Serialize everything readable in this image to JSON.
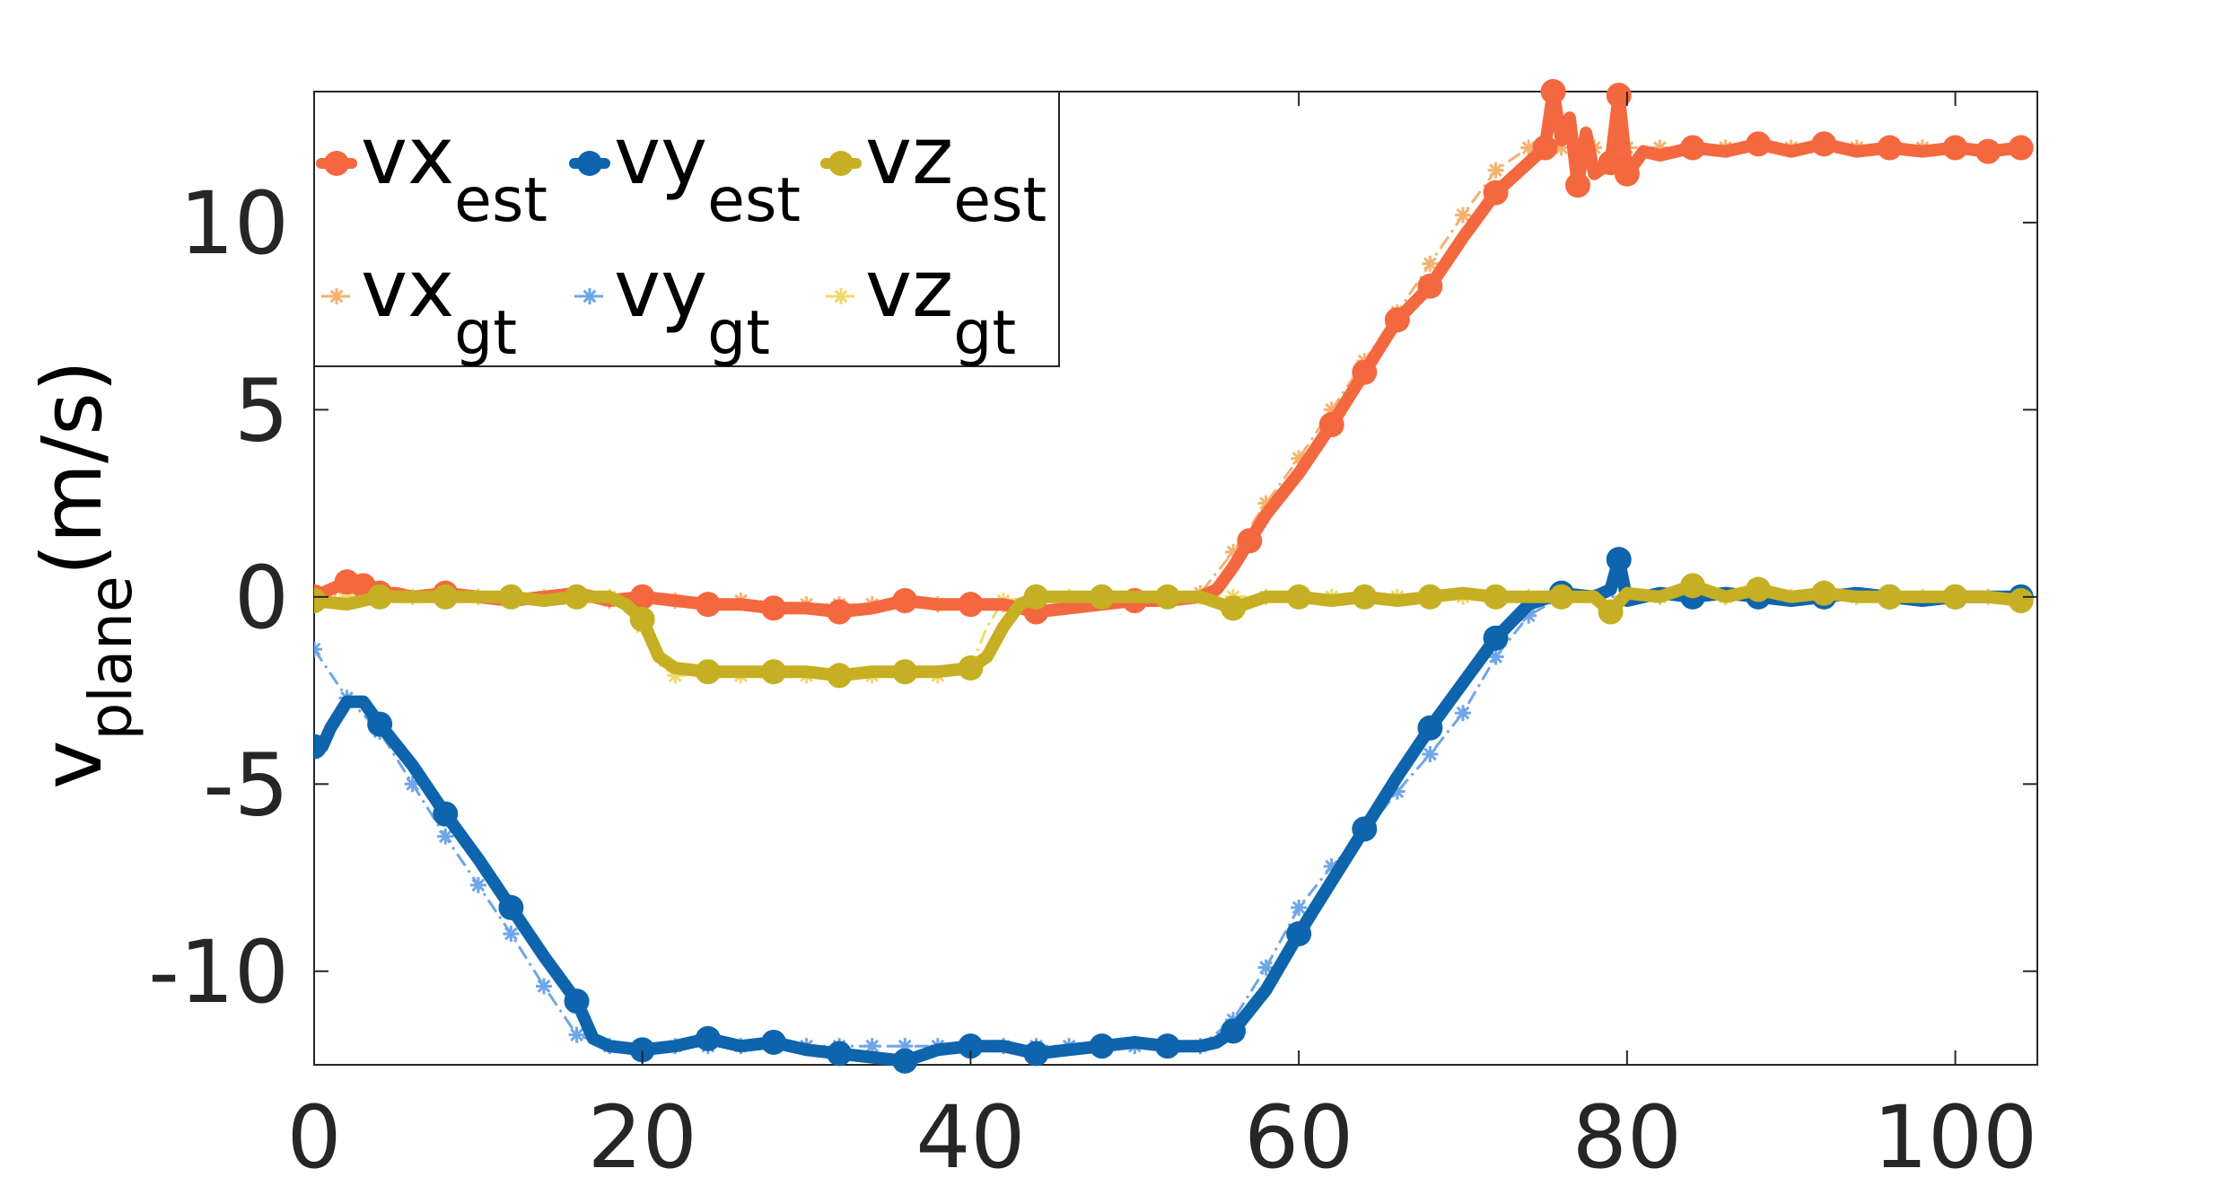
{
  "chart_data": {
    "type": "line",
    "title": "",
    "xlabel": "",
    "ylabel": {
      "base": "v",
      "subscript": "plane",
      "suffix": "(m/s)"
    },
    "xlim": [
      0,
      105
    ],
    "ylim": [
      -12.5,
      13.5
    ],
    "xticks": [
      0,
      20,
      40,
      60,
      80,
      100
    ],
    "yticks": [
      -10,
      -5,
      0,
      5,
      10
    ],
    "xtick_labels": [
      "0",
      "20",
      "40",
      "60",
      "80",
      "100"
    ],
    "ytick_labels": [
      "-10",
      "-5",
      "0",
      "5",
      "10"
    ],
    "grid": false,
    "legend_position": "top-left",
    "series": [
      {
        "name": "vx_est",
        "label_main": "vx",
        "label_sub": "est",
        "kind": "est",
        "color": "#F4683F",
        "x": [
          0,
          1,
          2,
          3,
          4,
          5,
          6,
          8,
          10,
          12,
          14,
          16,
          18,
          20,
          22,
          24,
          26,
          28,
          30,
          32,
          34,
          36,
          38,
          40,
          42,
          44,
          46,
          48,
          50,
          52,
          54,
          55,
          56,
          57,
          58,
          60,
          62,
          64,
          66,
          68,
          70,
          72,
          74,
          75,
          75.5,
          76,
          76.5,
          77,
          77.5,
          78,
          79,
          79.5,
          80,
          81,
          82,
          84,
          86,
          88,
          90,
          92,
          94,
          96,
          98,
          100,
          102,
          104
        ],
        "y": [
          0,
          0.2,
          0.4,
          0.3,
          0.1,
          0.1,
          0,
          0.1,
          0,
          -0.1,
          0,
          0.1,
          -0.1,
          0,
          -0.1,
          -0.2,
          -0.2,
          -0.3,
          -0.3,
          -0.4,
          -0.3,
          -0.1,
          -0.2,
          -0.2,
          -0.2,
          -0.4,
          -0.3,
          -0.2,
          -0.1,
          -0.1,
          0,
          0.2,
          0.8,
          1.5,
          2.2,
          3.3,
          4.6,
          6.0,
          7.4,
          8.3,
          9.6,
          10.8,
          11.6,
          12.0,
          13.5,
          12.2,
          12.8,
          11.0,
          12.4,
          11.3,
          11.6,
          13.4,
          11.3,
          11.9,
          11.8,
          12.0,
          11.9,
          12.1,
          11.9,
          12.1,
          11.9,
          12.0,
          11.9,
          12.0,
          11.9,
          12.0
        ],
        "markers": [
          0,
          2,
          3,
          4,
          8,
          20,
          24,
          28,
          32,
          36,
          40,
          44,
          50,
          57,
          62,
          64,
          66,
          68,
          72,
          75,
          75.5,
          77,
          79,
          79.5,
          80,
          84,
          88,
          92,
          96,
          100,
          102,
          104
        ]
      },
      {
        "name": "vy_est",
        "label_main": "vy",
        "label_sub": "est",
        "kind": "est",
        "color": "#0E64AD",
        "x": [
          0,
          0.5,
          1,
          2,
          3,
          4,
          6,
          8,
          10,
          12,
          14,
          16,
          17,
          18,
          20,
          22,
          24,
          26,
          28,
          30,
          32,
          34,
          36,
          38,
          40,
          42,
          44,
          46,
          48,
          50,
          52,
          54,
          55,
          56,
          58,
          60,
          62,
          64,
          66,
          68,
          70,
          72,
          74,
          76,
          78,
          79,
          79.5,
          80,
          82,
          84,
          86,
          88,
          90,
          92,
          94,
          96,
          98,
          100,
          102,
          104
        ],
        "y": [
          -4.0,
          -4.0,
          -3.5,
          -2.8,
          -2.8,
          -3.4,
          -4.5,
          -5.8,
          -7.0,
          -8.3,
          -9.6,
          -10.8,
          -11.8,
          -12.0,
          -12.1,
          -12.0,
          -11.8,
          -12.0,
          -11.9,
          -12.1,
          -12.2,
          -12.3,
          -12.4,
          -12.1,
          -12.0,
          -12.0,
          -12.2,
          -12.1,
          -12.0,
          -11.9,
          -12.0,
          -12.0,
          -11.9,
          -11.6,
          -10.5,
          -9.0,
          -7.6,
          -6.2,
          -4.8,
          -3.5,
          -2.3,
          -1.1,
          -0.2,
          0.1,
          0,
          0.2,
          1.0,
          -0.1,
          0.1,
          0,
          0.1,
          0,
          -0.1,
          0,
          0.1,
          0,
          -0.1,
          0,
          0,
          0
        ],
        "markers": [
          0,
          4,
          8,
          12,
          16,
          20,
          24,
          28,
          32,
          36,
          40,
          44,
          48,
          52,
          56,
          60,
          64,
          68,
          72,
          76,
          79.5,
          84,
          88,
          92,
          96,
          100,
          104
        ]
      },
      {
        "name": "vz_est",
        "label_main": "vz",
        "label_sub": "est",
        "kind": "est",
        "color": "#C6AF23",
        "x": [
          0,
          2,
          4,
          6,
          8,
          10,
          12,
          14,
          16,
          18,
          19,
          20,
          21,
          22,
          24,
          26,
          28,
          30,
          32,
          34,
          36,
          38,
          40,
          41,
          42,
          43,
          44,
          46,
          48,
          50,
          52,
          54,
          56,
          58,
          60,
          62,
          64,
          66,
          68,
          70,
          72,
          74,
          76,
          78,
          79,
          80,
          82,
          84,
          86,
          88,
          90,
          92,
          94,
          96,
          98,
          100,
          102,
          104
        ],
        "y": [
          -0.1,
          -0.2,
          0,
          0,
          0,
          0,
          0,
          -0.1,
          0,
          0,
          -0.2,
          -0.6,
          -1.6,
          -1.9,
          -2.0,
          -2.0,
          -2.0,
          -2.0,
          -2.1,
          -2.0,
          -2.0,
          -2.0,
          -1.9,
          -1.6,
          -0.8,
          -0.2,
          0,
          0,
          0,
          0,
          0,
          0,
          -0.3,
          0,
          0,
          -0.1,
          0,
          -0.1,
          0,
          0.1,
          0,
          0,
          0,
          0,
          -0.4,
          0.1,
          0,
          0.3,
          0,
          0.2,
          0,
          0.1,
          0,
          0,
          0,
          0,
          0,
          -0.1
        ],
        "markers": [
          0,
          4,
          8,
          12,
          16,
          20,
          24,
          28,
          32,
          36,
          40,
          44,
          48,
          52,
          56,
          60,
          64,
          68,
          72,
          76,
          79,
          84,
          88,
          92,
          96,
          100,
          104
        ]
      },
      {
        "name": "vx_gt",
        "label_main": "vx",
        "label_sub": "gt",
        "kind": "gt",
        "color": "#F5B26E",
        "x": [
          0,
          2,
          4,
          6,
          8,
          10,
          12,
          14,
          16,
          18,
          20,
          22,
          24,
          26,
          28,
          30,
          32,
          34,
          36,
          38,
          40,
          42,
          44,
          46,
          48,
          50,
          52,
          54,
          56,
          58,
          60,
          62,
          64,
          66,
          68,
          70,
          72,
          74,
          76,
          78,
          80,
          82,
          84,
          86,
          88,
          90,
          92,
          94,
          96,
          98,
          100,
          102,
          104
        ],
        "y": [
          0,
          0.1,
          0.1,
          0,
          0,
          0,
          0,
          0,
          0,
          -0.1,
          -0.1,
          -0.1,
          -0.1,
          -0.1,
          -0.2,
          -0.2,
          -0.2,
          -0.2,
          -0.2,
          -0.2,
          -0.2,
          -0.2,
          -0.1,
          -0.1,
          -0.1,
          0,
          0,
          0.1,
          1.2,
          2.5,
          3.7,
          5.0,
          6.3,
          7.6,
          8.9,
          10.2,
          11.4,
          12.0,
          12.0,
          12.0,
          12.0,
          12.0,
          12.0,
          12.0,
          12.0,
          12.0,
          12.0,
          12.0,
          12.0,
          12.0,
          12.0,
          12.0,
          12.0
        ],
        "markers": [
          0,
          2,
          4,
          6,
          8,
          10,
          12,
          14,
          16,
          18,
          20,
          22,
          24,
          26,
          28,
          30,
          32,
          34,
          36,
          38,
          40,
          42,
          44,
          46,
          48,
          50,
          52,
          54,
          56,
          58,
          60,
          62,
          64,
          66,
          68,
          70,
          72,
          74,
          76,
          78,
          80,
          82,
          84,
          86,
          88,
          90,
          92,
          94,
          96,
          98,
          100,
          102,
          104
        ]
      },
      {
        "name": "vy_gt",
        "label_main": "vy",
        "label_sub": "gt",
        "kind": "gt",
        "color": "#6EA6E8",
        "x": [
          0,
          2,
          4,
          6,
          8,
          10,
          12,
          14,
          16,
          18,
          20,
          22,
          24,
          26,
          28,
          30,
          32,
          34,
          36,
          38,
          40,
          42,
          44,
          46,
          48,
          50,
          52,
          54,
          56,
          58,
          60,
          62,
          64,
          66,
          68,
          70,
          72,
          74,
          76,
          78,
          80,
          82,
          84,
          86,
          88,
          90,
          92,
          94,
          96,
          98,
          100,
          102,
          104
        ],
        "y": [
          -1.4,
          -2.7,
          -3.6,
          -5.0,
          -6.4,
          -7.7,
          -9.0,
          -10.4,
          -11.7,
          -12.0,
          -12.0,
          -12.0,
          -12.0,
          -12.0,
          -12.0,
          -12.0,
          -12.0,
          -12.0,
          -12.0,
          -12.0,
          -12.0,
          -12.0,
          -12.0,
          -12.0,
          -12.0,
          -12.0,
          -12.0,
          -12.0,
          -11.3,
          -9.9,
          -8.3,
          -7.2,
          -6.3,
          -5.2,
          -4.2,
          -3.1,
          -1.6,
          -0.5,
          0,
          0,
          0,
          0,
          0,
          0,
          0,
          0,
          0,
          0,
          0,
          0,
          0,
          0,
          0
        ],
        "markers": [
          0,
          2,
          4,
          6,
          8,
          10,
          12,
          14,
          16,
          18,
          20,
          22,
          24,
          26,
          28,
          30,
          32,
          34,
          36,
          38,
          40,
          42,
          44,
          46,
          48,
          50,
          52,
          54,
          56,
          58,
          60,
          62,
          64,
          66,
          68,
          70,
          72,
          74,
          76,
          78,
          80,
          82,
          84,
          86,
          88,
          90,
          92,
          94,
          96,
          98,
          100,
          102,
          104
        ]
      },
      {
        "name": "vz_gt",
        "label_main": "vz",
        "label_sub": "gt",
        "kind": "gt",
        "color": "#EFD96A",
        "x": [
          0,
          2,
          4,
          6,
          8,
          10,
          12,
          14,
          16,
          18,
          20,
          21,
          22,
          24,
          26,
          28,
          30,
          32,
          34,
          36,
          38,
          40,
          41,
          42,
          44,
          46,
          48,
          50,
          52,
          54,
          56,
          58,
          60,
          62,
          64,
          66,
          68,
          70,
          72,
          74,
          76,
          78,
          80,
          82,
          84,
          86,
          88,
          90,
          92,
          94,
          96,
          98,
          100,
          102,
          104
        ],
        "y": [
          0,
          0,
          0,
          0,
          0,
          0,
          0,
          0,
          0,
          0,
          -0.8,
          -1.8,
          -2.1,
          -2.1,
          -2.1,
          -2.1,
          -2.1,
          -2.1,
          -2.1,
          -2.1,
          -2.1,
          -1.9,
          -0.8,
          -0.1,
          0,
          0,
          0,
          0,
          0,
          0,
          0,
          0,
          0,
          0,
          0,
          0,
          0,
          0,
          0,
          0,
          0,
          0,
          0,
          0,
          0,
          0,
          0,
          0,
          0,
          0,
          0,
          0,
          0,
          0,
          0
        ],
        "markers": [
          0,
          2,
          4,
          6,
          8,
          10,
          12,
          14,
          16,
          18,
          20,
          22,
          24,
          26,
          28,
          30,
          32,
          34,
          36,
          38,
          40,
          42,
          44,
          46,
          48,
          50,
          52,
          54,
          56,
          58,
          60,
          62,
          64,
          66,
          68,
          70,
          72,
          74,
          76,
          78,
          80,
          82,
          84,
          86,
          88,
          90,
          92,
          94,
          96,
          98,
          100,
          102,
          104
        ]
      }
    ],
    "legend_order": [
      "vx_est",
      "vy_est",
      "vz_est",
      "vx_gt",
      "vy_gt",
      "vz_gt"
    ]
  }
}
